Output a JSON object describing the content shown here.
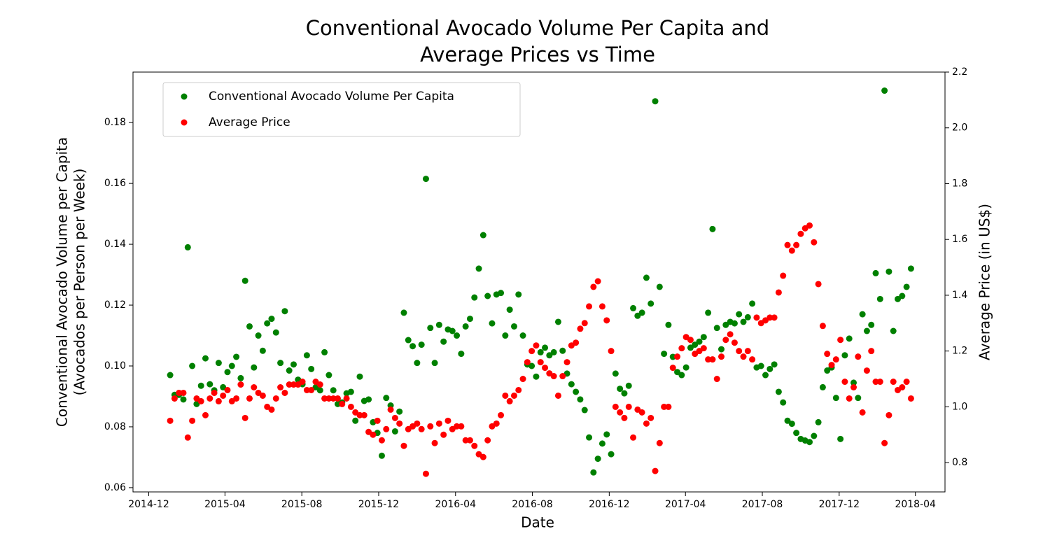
{
  "chart_data": {
    "type": "scatter",
    "title": [
      "Conventional Avocado Volume Per Capita and",
      "Average Prices vs Time"
    ],
    "xlabel": "Date",
    "ylabel": [
      "Conventional Avocado Volume per Capita",
      "(Avocados per Person per Week)"
    ],
    "y2label": "Average Price (in US$)",
    "legend": "upper left",
    "xlim": [
      "2014-11-06",
      "2018-05-18"
    ],
    "xticks": [
      "2014-12",
      "2015-04",
      "2015-08",
      "2015-12",
      "2016-04",
      "2016-08",
      "2016-12",
      "2017-04",
      "2017-08",
      "2017-12",
      "2018-04"
    ],
    "ylim": [
      0.0586,
      0.1966
    ],
    "yticks": [
      0.06,
      0.08,
      {
        "value": 0.1,
        "label": "0.10"
      },
      0.12,
      0.14,
      0.16,
      0.18
    ],
    "y2lim": [
      0.695,
      2.2
    ],
    "y2ticks": [
      0.8,
      {
        "value": 1.0,
        "label": "1.0"
      },
      1.2,
      1.4,
      1.6,
      1.8,
      {
        "value": 2.0,
        "label": "2.0"
      },
      2.2
    ],
    "x": [
      "2015-01-04",
      "2015-01-11",
      "2015-01-18",
      "2015-01-25",
      "2015-02-01",
      "2015-02-08",
      "2015-02-15",
      "2015-02-22",
      "2015-03-01",
      "2015-03-08",
      "2015-03-15",
      "2015-03-22",
      "2015-03-29",
      "2015-04-05",
      "2015-04-12",
      "2015-04-19",
      "2015-04-26",
      "2015-05-03",
      "2015-05-10",
      "2015-05-17",
      "2015-05-24",
      "2015-05-31",
      "2015-06-07",
      "2015-06-14",
      "2015-06-21",
      "2015-06-28",
      "2015-07-05",
      "2015-07-12",
      "2015-07-19",
      "2015-07-26",
      "2015-08-02",
      "2015-08-09",
      "2015-08-16",
      "2015-08-23",
      "2015-08-30",
      "2015-09-06",
      "2015-09-13",
      "2015-09-20",
      "2015-09-27",
      "2015-10-04",
      "2015-10-11",
      "2015-10-18",
      "2015-10-25",
      "2015-11-01",
      "2015-11-08",
      "2015-11-15",
      "2015-11-22",
      "2015-11-29",
      "2015-12-06",
      "2015-12-13",
      "2015-12-20",
      "2015-12-27",
      "2016-01-03",
      "2016-01-10",
      "2016-01-17",
      "2016-01-24",
      "2016-01-31",
      "2016-02-07",
      "2016-02-14",
      "2016-02-21",
      "2016-02-28",
      "2016-03-06",
      "2016-03-13",
      "2016-03-20",
      "2016-03-27",
      "2016-04-03",
      "2016-04-10",
      "2016-04-17",
      "2016-04-24",
      "2016-05-01",
      "2016-05-08",
      "2016-05-15",
      "2016-05-22",
      "2016-05-29",
      "2016-06-05",
      "2016-06-12",
      "2016-06-19",
      "2016-06-26",
      "2016-07-03",
      "2016-07-10",
      "2016-07-17",
      "2016-07-24",
      "2016-07-31",
      "2016-08-07",
      "2016-08-14",
      "2016-08-21",
      "2016-08-28",
      "2016-09-04",
      "2016-09-11",
      "2016-09-18",
      "2016-09-25",
      "2016-10-02",
      "2016-10-09",
      "2016-10-16",
      "2016-10-23",
      "2016-10-30",
      "2016-11-06",
      "2016-11-13",
      "2016-11-20",
      "2016-11-27",
      "2016-12-04",
      "2016-12-11",
      "2016-12-18",
      "2016-12-25",
      "2017-01-01",
      "2017-01-08",
      "2017-01-15",
      "2017-01-22",
      "2017-01-29",
      "2017-02-05",
      "2017-02-12",
      "2017-02-19",
      "2017-02-26",
      "2017-03-05",
      "2017-03-12",
      "2017-03-19",
      "2017-03-26",
      "2017-04-02",
      "2017-04-09",
      "2017-04-16",
      "2017-04-23",
      "2017-04-30",
      "2017-05-07",
      "2017-05-14",
      "2017-05-21",
      "2017-05-28",
      "2017-06-04",
      "2017-06-11",
      "2017-06-18",
      "2017-06-25",
      "2017-07-02",
      "2017-07-09",
      "2017-07-16",
      "2017-07-23",
      "2017-07-30",
      "2017-08-06",
      "2017-08-13",
      "2017-08-20",
      "2017-08-27",
      "2017-09-03",
      "2017-09-10",
      "2017-09-17",
      "2017-09-24",
      "2017-10-01",
      "2017-10-08",
      "2017-10-15",
      "2017-10-22",
      "2017-10-29",
      "2017-11-05",
      "2017-11-12",
      "2017-11-19",
      "2017-11-26",
      "2017-12-03",
      "2017-12-10",
      "2017-12-17",
      "2017-12-24",
      "2017-12-31",
      "2018-01-07",
      "2018-01-14",
      "2018-01-21",
      "2018-01-28",
      "2018-02-04",
      "2018-02-11",
      "2018-02-18",
      "2018-02-25",
      "2018-03-04",
      "2018-03-11",
      "2018-03-18",
      "2018-03-25"
    ],
    "series": [
      {
        "name": "Conventional Avocado Volume Per Capita",
        "color": "green",
        "values": [
          0.097,
          0.0905,
          0.0905,
          0.089,
          0.139,
          0.1,
          0.0875,
          0.0935,
          0.1025,
          0.094,
          0.092,
          0.101,
          0.093,
          0.098,
          0.1,
          0.103,
          0.096,
          0.128,
          0.113,
          0.0995,
          0.11,
          0.105,
          0.114,
          0.1155,
          0.111,
          0.101,
          0.118,
          0.0985,
          0.1005,
          0.0955,
          0.094,
          0.1035,
          0.099,
          0.093,
          0.092,
          0.1045,
          0.097,
          0.092,
          0.0875,
          0.088,
          0.091,
          0.0915,
          0.082,
          0.0965,
          0.0885,
          0.089,
          0.0815,
          0.078,
          0.0705,
          0.0895,
          0.087,
          0.0785,
          0.085,
          0.1175,
          0.1085,
          0.1065,
          0.101,
          0.107,
          0.1615,
          0.1125,
          0.101,
          0.1135,
          0.108,
          0.112,
          0.1115,
          0.11,
          0.104,
          0.113,
          0.1155,
          0.1225,
          0.132,
          0.143,
          0.123,
          0.114,
          0.1235,
          0.124,
          0.11,
          0.1185,
          0.113,
          0.1235,
          0.11,
          0.1005,
          0.1,
          0.0965,
          0.1045,
          0.106,
          0.1035,
          0.1045,
          0.1145,
          0.105,
          0.0975,
          0.094,
          0.0915,
          0.089,
          0.0855,
          0.0765,
          0.065,
          0.0695,
          0.0745,
          0.0775,
          0.071,
          0.0975,
          0.0925,
          0.091,
          0.0935,
          0.119,
          0.1165,
          0.1175,
          0.129,
          0.1205,
          0.187,
          0.126,
          0.104,
          0.1135,
          0.103,
          0.098,
          0.097,
          0.0995,
          0.106,
          0.107,
          0.108,
          0.1095,
          0.1175,
          0.145,
          0.1125,
          0.1055,
          0.1135,
          0.1145,
          0.114,
          0.117,
          0.1145,
          0.116,
          0.1205,
          0.0995,
          0.1,
          0.097,
          0.099,
          0.1005,
          0.0915,
          0.088,
          0.082,
          0.081,
          0.078,
          0.076,
          0.0755,
          0.075,
          0.077,
          0.0815,
          0.093,
          0.0985,
          0.0995,
          0.0895,
          0.076,
          0.1035,
          0.109,
          0.0945,
          0.0895,
          0.117,
          0.1115,
          0.1135,
          0.1305,
          0.122,
          0.1905,
          0.131,
          0.1115,
          0.122,
          0.123,
          0.126,
          0.132
        ]
      },
      {
        "name": "Average Price",
        "color": "red",
        "axis": "y2",
        "values": [
          0.95,
          1.03,
          1.05,
          1.05,
          0.89,
          0.95,
          1.03,
          1.02,
          0.97,
          1.03,
          1.05,
          1.02,
          1.04,
          1.06,
          1.02,
          1.03,
          1.08,
          0.96,
          1.03,
          1.07,
          1.05,
          1.04,
          1.0,
          0.99,
          1.03,
          1.07,
          1.05,
          1.08,
          1.08,
          1.08,
          1.09,
          1.06,
          1.06,
          1.09,
          1.08,
          1.03,
          1.03,
          1.03,
          1.03,
          1.01,
          1.03,
          1.0,
          0.98,
          0.97,
          0.97,
          0.91,
          0.9,
          0.95,
          0.88,
          0.92,
          0.99,
          0.96,
          0.94,
          0.86,
          0.92,
          0.93,
          0.94,
          0.92,
          0.76,
          0.93,
          0.87,
          0.94,
          0.9,
          0.95,
          0.92,
          0.93,
          0.93,
          0.88,
          0.88,
          0.86,
          0.83,
          0.82,
          0.88,
          0.93,
          0.94,
          0.97,
          1.04,
          1.02,
          1.04,
          1.06,
          1.1,
          1.16,
          1.2,
          1.22,
          1.16,
          1.14,
          1.12,
          1.11,
          1.04,
          1.11,
          1.16,
          1.22,
          1.23,
          1.28,
          1.3,
          1.36,
          1.43,
          1.45,
          1.36,
          1.31,
          1.2,
          1.0,
          0.98,
          0.96,
          1.0,
          0.89,
          0.99,
          0.98,
          0.94,
          0.96,
          0.77,
          0.87,
          1.0,
          1.0,
          1.14,
          1.18,
          1.21,
          1.25,
          1.24,
          1.19,
          1.2,
          1.21,
          1.17,
          1.17,
          1.1,
          1.18,
          1.24,
          1.26,
          1.23,
          1.2,
          1.18,
          1.2,
          1.17,
          1.32,
          1.3,
          1.31,
          1.32,
          1.32,
          1.41,
          1.47,
          1.58,
          1.56,
          1.58,
          1.62,
          1.64,
          1.65,
          1.59,
          1.44,
          1.29,
          1.19,
          1.15,
          1.17,
          1.24,
          1.09,
          1.03,
          1.07,
          1.18,
          0.98,
          1.13,
          1.2,
          1.09,
          1.09,
          0.87,
          0.97,
          1.09,
          1.06,
          1.07,
          1.09,
          1.03
        ]
      }
    ]
  }
}
